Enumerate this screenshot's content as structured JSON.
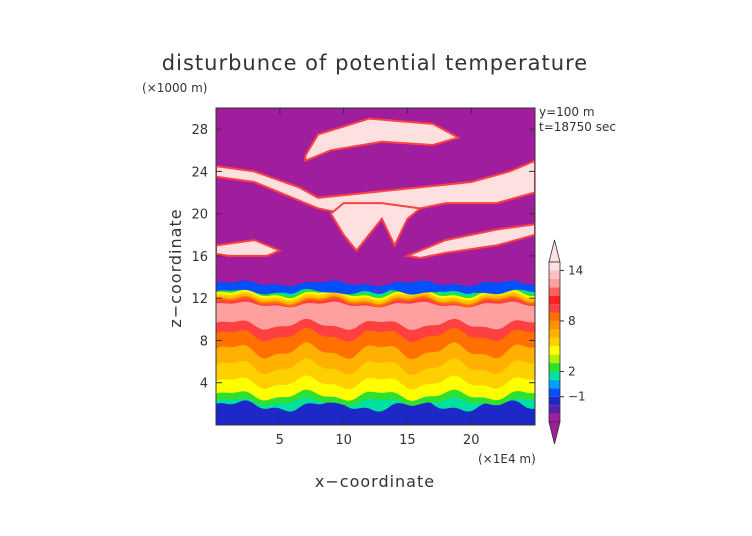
{
  "chart_data": {
    "type": "heatmap",
    "title": "disturbunce of potential temperature",
    "y_scale_label": "(×1000 m)",
    "x_scale_label": "(×1E4 m)",
    "xlabel": "x−coordinate",
    "ylabel": "z−coordinate",
    "annotations": [
      "y=100 m",
      "t=18750 sec"
    ],
    "xlim": [
      0,
      25
    ],
    "ylim": [
      0,
      30
    ],
    "x_ticks": [
      5,
      10,
      15,
      20
    ],
    "y_ticks": [
      4,
      8,
      12,
      16,
      20,
      24,
      28
    ],
    "colorbar": {
      "levels": [
        -4,
        -3,
        -2,
        -1,
        0,
        1,
        2,
        3,
        4,
        5,
        6,
        7,
        8,
        9,
        10,
        11,
        12,
        13,
        14,
        15
      ],
      "colors": [
        "#a01e9e",
        "#5a1fb0",
        "#1e28c8",
        "#0050ff",
        "#00a0ff",
        "#00e0a0",
        "#30e030",
        "#b0f000",
        "#ffff00",
        "#ffd000",
        "#ffb000",
        "#ff9000",
        "#ff7000",
        "#ff4040",
        "#ff2020",
        "#ff6060",
        "#ffa0a0",
        "#ffc0c0",
        "#ffe0e0"
      ],
      "tick_values": [
        14,
        8,
        2,
        -1
      ],
      "tick_labels": [
        "14",
        "8",
        "2",
        "−1"
      ]
    },
    "description_layers": [
      {
        "z": [
          0,
          2
        ],
        "value": -1
      },
      {
        "z": [
          2,
          3.5
        ],
        "value": 1
      },
      {
        "z": [
          3.5,
          6
        ],
        "value": 5
      },
      {
        "z": [
          6,
          9
        ],
        "value": 8
      },
      {
        "z": [
          9,
          12
        ],
        "value": 14
      },
      {
        "z": [
          12,
          13
        ],
        "value": 0
      }
    ],
    "background_value": -4
  }
}
